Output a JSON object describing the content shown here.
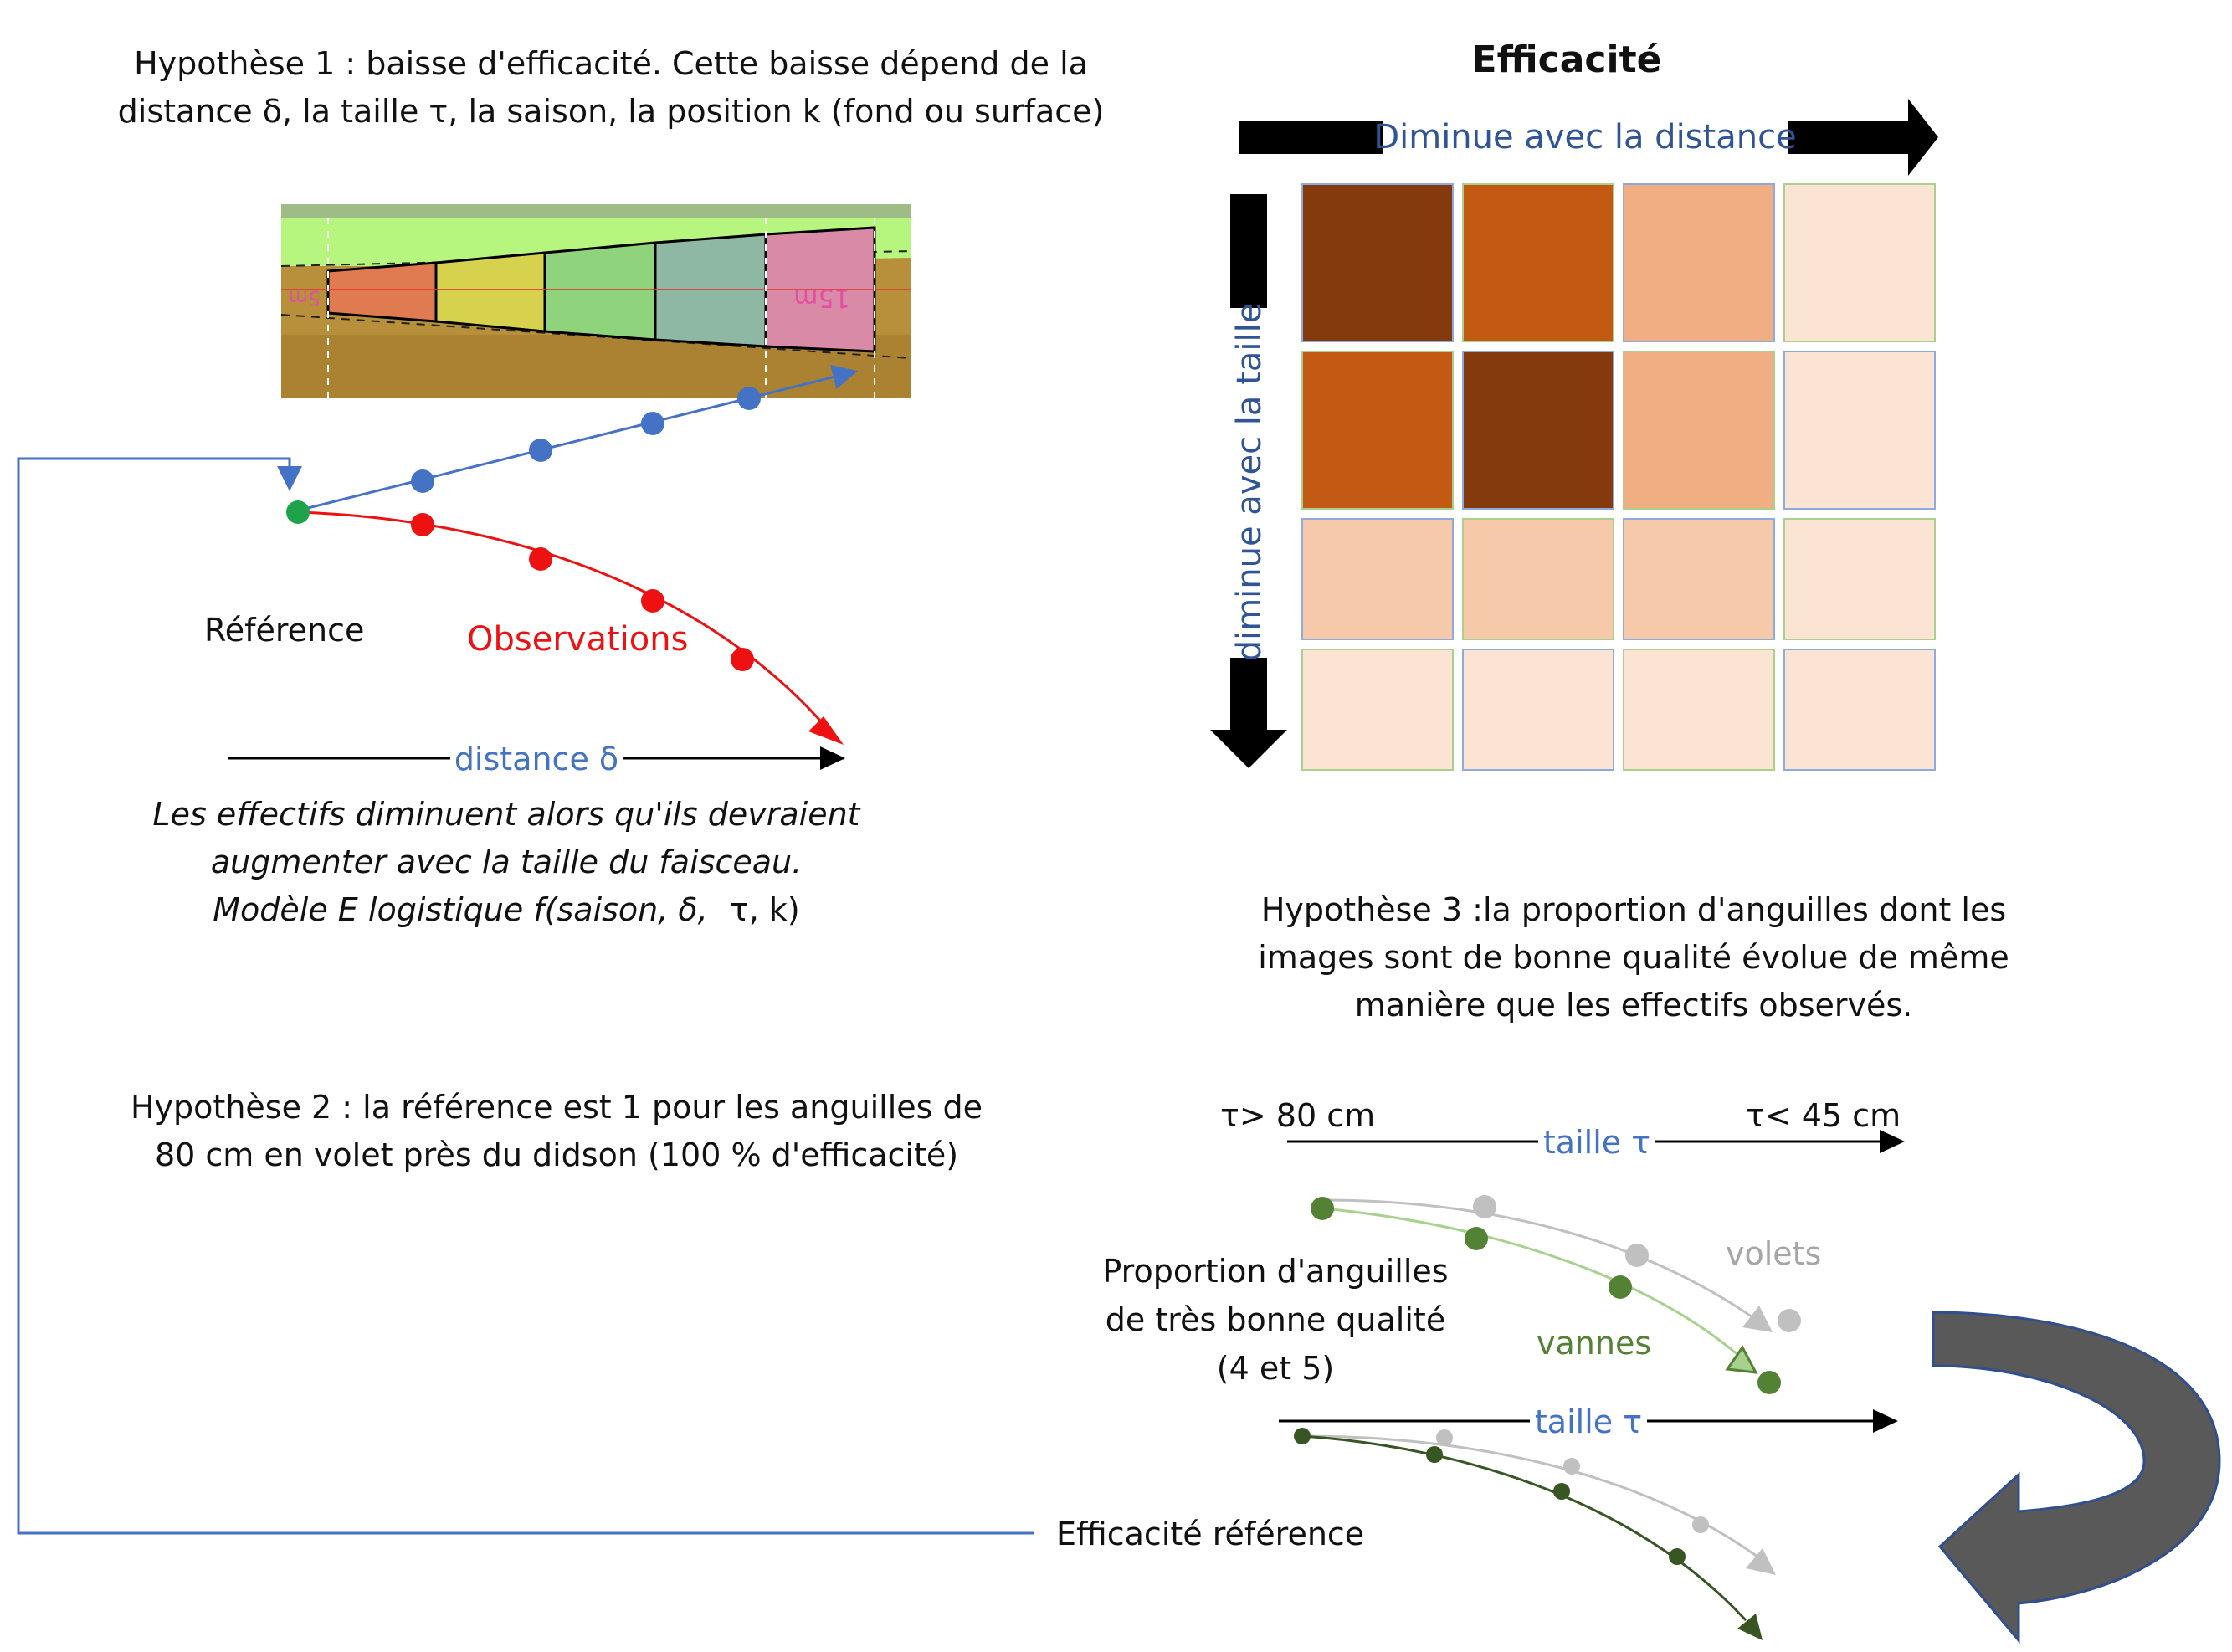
{
  "hypotheses": {
    "h1": {
      "line1": "Hypothèse 1 : baisse d'efficacité. Cette baisse dépend de la",
      "line2": "distance δ, la taille τ, la saison, la position k (fond ou surface)"
    },
    "h2": {
      "line1": "Hypothèse 2 : la référence est 1 pour les anguilles de",
      "line2": "80 cm en volet près du didson (100 % d'efficacité)"
    },
    "h3": {
      "line1": "Hypothèse 3 :la proportion d'anguilles dont les",
      "line2": "images sont de bonne qualité évolue de même",
      "line3": "manière que les effectifs observés."
    }
  },
  "sonar_image": {
    "label_near": "5m",
    "label_far": "15m",
    "colors": {
      "sky": "#b6f57e",
      "ground": "#b88f3a",
      "segments": [
        "#e07a50",
        "#d7d24e",
        "#8fd47c",
        "#8fb8a4",
        "#d98aa6"
      ]
    }
  },
  "left_plot": {
    "reference_label": "Référence",
    "observations_label": "Observations",
    "axis_label": "distance δ",
    "colors": {
      "reference": "#1ea24a",
      "expected": "#4472c4",
      "observations": "#ee1111"
    }
  },
  "caption": {
    "line1": "Les effectifs diminuent alors qu'ils devraient",
    "line2": "augmenter avec la taille du faisceau.",
    "line3_italic": "Modèle E logistique f(saison, δ,",
    "line3_rest": "τ, k)"
  },
  "efficiency_matrix": {
    "title": "Efficacité",
    "top_arrow_label": "Diminue avec la distance",
    "side_arrow_label": "diminue avec la taille",
    "colors": [
      [
        "#853a0e",
        "#c35a13",
        "#f2ae83",
        "#fbe4d4"
      ],
      [
        "#c35a13",
        "#853a0e",
        "#f2ae83",
        "#fbe4d4"
      ],
      [
        "#f7c9ab",
        "#f7c9ab",
        "#f7c9ab",
        "#fbe4d4"
      ],
      [
        "#fbe4d4",
        "#fbe4d4",
        "#fbe4d4",
        "#fbe4d4"
      ]
    ]
  },
  "quality_plot": {
    "size_left": "τ>  80 cm",
    "size_right": "τ<  45 cm",
    "axis_label": "taille τ",
    "axis_label_2": "taille τ",
    "proportion_line1": "Proportion d'anguilles",
    "proportion_line2": "de très bonne qualité",
    "proportion_line3": "(4 et 5)",
    "volets_label": "volets",
    "vannes_label": "vannes",
    "colors": {
      "volets": "#c0c0c0",
      "vannes": "#548235",
      "vannes_light": "#a9d18e",
      "dark": "#375623"
    }
  },
  "reference_label": "Efficacité référence",
  "colors": {
    "feedback_line": "#4472c4",
    "curved_arrow": "#595959"
  }
}
